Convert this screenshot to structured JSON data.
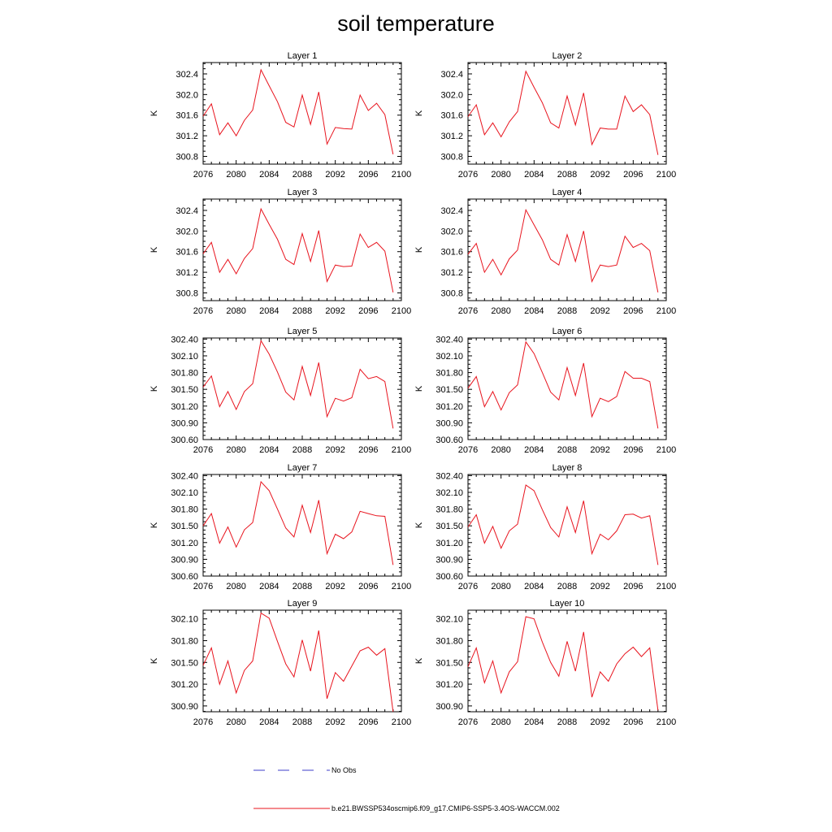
{
  "figure": {
    "title": "soil temperature",
    "legend": [
      {
        "label": "No Obs",
        "color": "#3c3cc8",
        "style": "dashed"
      },
      {
        "label": "b.e21.BWSSP534oscmip6.f09_g17.CMIP6-SSP5-3.4OS-WACCM.002",
        "color": "#e8141e",
        "style": "solid"
      }
    ]
  },
  "chart_data": [
    {
      "type": "line",
      "title": "Layer 1",
      "ylabel": "K",
      "xlim": [
        2076,
        2100
      ],
      "ylim": [
        300.65,
        302.62
      ],
      "xticks": [
        "2076",
        "2080",
        "2084",
        "2088",
        "2092",
        "2096",
        "2100"
      ],
      "yticks": [
        "300.8",
        "301.2",
        "301.6",
        "302.0",
        "302.4"
      ],
      "series": [
        {
          "name": "b.e21.BWSSP534oscmip6.f09_g17.CMIP6-SSP5-3.4OS-WACCM.002",
          "color": "#e8141e",
          "x": [
            2076,
            2077,
            2078,
            2079,
            2080,
            2081,
            2082,
            2083,
            2084,
            2085,
            2086,
            2087,
            2088,
            2089,
            2090,
            2091,
            2092,
            2093,
            2094,
            2095,
            2096,
            2097,
            2098,
            2099
          ],
          "y": [
            301.58,
            301.82,
            301.22,
            301.45,
            301.2,
            301.5,
            301.7,
            302.48,
            302.17,
            301.86,
            301.46,
            301.37,
            301.99,
            301.42,
            302.05,
            301.04,
            301.36,
            301.34,
            301.33,
            301.99,
            301.69,
            301.83,
            301.61,
            300.84
          ]
        }
      ]
    },
    {
      "type": "line",
      "title": "Layer 2",
      "ylabel": "K",
      "xlim": [
        2076,
        2100
      ],
      "ylim": [
        300.65,
        302.62
      ],
      "xticks": [
        "2076",
        "2080",
        "2084",
        "2088",
        "2092",
        "2096",
        "2100"
      ],
      "yticks": [
        "300.8",
        "301.2",
        "301.6",
        "302.0",
        "302.4"
      ],
      "series": [
        {
          "name": "b.e21.BWSSP534oscmip6.f09_g17.CMIP6-SSP5-3.4OS-WACCM.002",
          "color": "#e8141e",
          "x": [
            2076,
            2077,
            2078,
            2079,
            2080,
            2081,
            2082,
            2083,
            2084,
            2085,
            2086,
            2087,
            2088,
            2089,
            2090,
            2091,
            2092,
            2093,
            2094,
            2095,
            2096,
            2097,
            2098,
            2099
          ],
          "y": [
            301.57,
            301.8,
            301.22,
            301.45,
            301.18,
            301.47,
            301.67,
            302.45,
            302.14,
            301.84,
            301.45,
            301.35,
            301.97,
            301.41,
            302.03,
            301.03,
            301.35,
            301.33,
            301.33,
            301.97,
            301.67,
            301.8,
            301.61,
            300.83
          ]
        }
      ]
    },
    {
      "type": "line",
      "title": "Layer 3",
      "ylabel": "K",
      "xlim": [
        2076,
        2100
      ],
      "ylim": [
        300.65,
        302.62
      ],
      "xticks": [
        "2076",
        "2080",
        "2084",
        "2088",
        "2092",
        "2096",
        "2100"
      ],
      "yticks": [
        "300.8",
        "301.2",
        "301.6",
        "302.0",
        "302.4"
      ],
      "series": [
        {
          "name": "b.e21.BWSSP534oscmip6.f09_g17.CMIP6-SSP5-3.4OS-WACCM.002",
          "color": "#e8141e",
          "x": [
            2076,
            2077,
            2078,
            2079,
            2080,
            2081,
            2082,
            2083,
            2084,
            2085,
            2086,
            2087,
            2088,
            2089,
            2090,
            2091,
            2092,
            2093,
            2094,
            2095,
            2096,
            2097,
            2098,
            2099
          ],
          "y": [
            301.56,
            301.78,
            301.2,
            301.45,
            301.17,
            301.47,
            301.66,
            302.43,
            302.13,
            301.84,
            301.45,
            301.35,
            301.95,
            301.41,
            302.01,
            301.02,
            301.34,
            301.31,
            301.32,
            301.94,
            301.68,
            301.78,
            301.61,
            300.81
          ]
        }
      ]
    },
    {
      "type": "line",
      "title": "Layer 4",
      "ylabel": "K",
      "xlim": [
        2076,
        2100
      ],
      "ylim": [
        300.65,
        302.62
      ],
      "xticks": [
        "2076",
        "2080",
        "2084",
        "2088",
        "2092",
        "2096",
        "2100"
      ],
      "yticks": [
        "300.8",
        "301.2",
        "301.6",
        "302.0",
        "302.4"
      ],
      "series": [
        {
          "name": "b.e21.BWSSP534oscmip6.f09_g17.CMIP6-SSP5-3.4OS-WACCM.002",
          "color": "#e8141e",
          "x": [
            2076,
            2077,
            2078,
            2079,
            2080,
            2081,
            2082,
            2083,
            2084,
            2085,
            2086,
            2087,
            2088,
            2089,
            2090,
            2091,
            2092,
            2093,
            2094,
            2095,
            2096,
            2097,
            2098,
            2099
          ],
          "y": [
            301.55,
            301.76,
            301.2,
            301.45,
            301.15,
            301.46,
            301.63,
            302.41,
            302.12,
            301.83,
            301.45,
            301.34,
            301.93,
            301.41,
            302.0,
            301.02,
            301.34,
            301.31,
            301.34,
            301.9,
            301.68,
            301.76,
            301.62,
            300.81
          ]
        }
      ]
    },
    {
      "type": "line",
      "title": "Layer 5",
      "ylabel": "K",
      "xlim": [
        2076,
        2100
      ],
      "ylim": [
        300.6,
        302.42
      ],
      "xticks": [
        "2076",
        "2080",
        "2084",
        "2088",
        "2092",
        "2096",
        "2100"
      ],
      "yticks": [
        "300.60",
        "300.90",
        "301.20",
        "301.50",
        "301.80",
        "302.10",
        "302.40"
      ],
      "series": [
        {
          "name": "b.e21.BWSSP534oscmip6.f09_g17.CMIP6-SSP5-3.4OS-WACCM.002",
          "color": "#e8141e",
          "x": [
            2076,
            2077,
            2078,
            2079,
            2080,
            2081,
            2082,
            2083,
            2084,
            2085,
            2086,
            2087,
            2088,
            2089,
            2090,
            2091,
            2092,
            2093,
            2094,
            2095,
            2096,
            2097,
            2098,
            2099
          ],
          "y": [
            301.54,
            301.74,
            301.19,
            301.46,
            301.14,
            301.46,
            301.6,
            302.37,
            302.13,
            301.81,
            301.45,
            301.31,
            301.91,
            301.39,
            301.98,
            301.01,
            301.34,
            301.29,
            301.35,
            301.86,
            301.69,
            301.73,
            301.64,
            300.8
          ]
        }
      ]
    },
    {
      "type": "line",
      "title": "Layer 6",
      "ylabel": "K",
      "xlim": [
        2076,
        2100
      ],
      "ylim": [
        300.6,
        302.42
      ],
      "xticks": [
        "2076",
        "2080",
        "2084",
        "2088",
        "2092",
        "2096",
        "2100"
      ],
      "yticks": [
        "300.60",
        "300.90",
        "301.20",
        "301.50",
        "301.80",
        "302.10",
        "302.40"
      ],
      "series": [
        {
          "name": "b.e21.BWSSP534oscmip6.f09_g17.CMIP6-SSP5-3.4OS-WACCM.002",
          "color": "#e8141e",
          "x": [
            2076,
            2077,
            2078,
            2079,
            2080,
            2081,
            2082,
            2083,
            2084,
            2085,
            2086,
            2087,
            2088,
            2089,
            2090,
            2091,
            2092,
            2093,
            2094,
            2095,
            2096,
            2097,
            2098,
            2099
          ],
          "y": [
            301.52,
            301.73,
            301.19,
            301.46,
            301.13,
            301.44,
            301.58,
            302.35,
            302.14,
            301.8,
            301.45,
            301.31,
            301.89,
            301.39,
            301.97,
            301.01,
            301.34,
            301.28,
            301.37,
            301.82,
            301.7,
            301.7,
            301.64,
            300.8
          ]
        }
      ]
    },
    {
      "type": "line",
      "title": "Layer 7",
      "ylabel": "K",
      "xlim": [
        2076,
        2100
      ],
      "ylim": [
        300.6,
        302.42
      ],
      "xticks": [
        "2076",
        "2080",
        "2084",
        "2088",
        "2092",
        "2096",
        "2100"
      ],
      "yticks": [
        "300.60",
        "300.90",
        "301.20",
        "301.50",
        "301.80",
        "302.10",
        "302.40"
      ],
      "series": [
        {
          "name": "b.e21.BWSSP534oscmip6.f09_g17.CMIP6-SSP5-3.4OS-WACCM.002",
          "color": "#e8141e",
          "x": [
            2076,
            2077,
            2078,
            2079,
            2080,
            2081,
            2082,
            2083,
            2084,
            2085,
            2086,
            2087,
            2088,
            2089,
            2090,
            2091,
            2092,
            2093,
            2094,
            2095,
            2096,
            2097,
            2098,
            2099
          ],
          "y": [
            301.5,
            301.72,
            301.19,
            301.48,
            301.12,
            301.43,
            301.56,
            302.29,
            302.13,
            301.8,
            301.46,
            301.3,
            301.87,
            301.38,
            301.96,
            301.0,
            301.35,
            301.27,
            301.39,
            301.76,
            301.72,
            301.68,
            301.67,
            300.8
          ]
        }
      ]
    },
    {
      "type": "line",
      "title": "Layer 8",
      "ylabel": "K",
      "xlim": [
        2076,
        2100
      ],
      "ylim": [
        300.6,
        302.42
      ],
      "xticks": [
        "2076",
        "2080",
        "2084",
        "2088",
        "2092",
        "2096",
        "2100"
      ],
      "yticks": [
        "300.60",
        "300.90",
        "301.20",
        "301.50",
        "301.80",
        "302.10",
        "302.40"
      ],
      "series": [
        {
          "name": "b.e21.BWSSP534oscmip6.f09_g17.CMIP6-SSP5-3.4OS-WACCM.002",
          "color": "#e8141e",
          "x": [
            2076,
            2077,
            2078,
            2079,
            2080,
            2081,
            2082,
            2083,
            2084,
            2085,
            2086,
            2087,
            2088,
            2089,
            2090,
            2091,
            2092,
            2093,
            2094,
            2095,
            2096,
            2097,
            2098,
            2099
          ],
          "y": [
            301.48,
            301.7,
            301.19,
            301.49,
            301.1,
            301.41,
            301.53,
            302.23,
            302.13,
            301.79,
            301.47,
            301.3,
            301.84,
            301.38,
            301.95,
            301.0,
            301.35,
            301.25,
            301.41,
            301.7,
            301.71,
            301.64,
            301.68,
            300.8
          ]
        }
      ]
    },
    {
      "type": "line",
      "title": "Layer 9",
      "ylabel": "K",
      "xlim": [
        2076,
        2100
      ],
      "ylim": [
        300.82,
        302.22
      ],
      "xticks": [
        "2076",
        "2080",
        "2084",
        "2088",
        "2092",
        "2096",
        "2100"
      ],
      "yticks": [
        "300.90",
        "301.20",
        "301.50",
        "301.80",
        "302.10"
      ],
      "series": [
        {
          "name": "b.e21.BWSSP534oscmip6.f09_g17.CMIP6-SSP5-3.4OS-WACCM.002",
          "color": "#e8141e",
          "x": [
            2076,
            2077,
            2078,
            2079,
            2080,
            2081,
            2082,
            2083,
            2084,
            2085,
            2086,
            2087,
            2088,
            2089,
            2090,
            2091,
            2092,
            2093,
            2094,
            2095,
            2096,
            2097,
            2098,
            2099
          ],
          "y": [
            301.46,
            301.7,
            301.2,
            301.52,
            301.08,
            301.39,
            301.52,
            302.18,
            302.11,
            301.79,
            301.48,
            301.3,
            301.81,
            301.38,
            301.94,
            301.0,
            301.36,
            301.24,
            301.45,
            301.66,
            301.71,
            301.6,
            301.69,
            300.82
          ]
        }
      ]
    },
    {
      "type": "line",
      "title": "Layer 10",
      "ylabel": "K",
      "xlim": [
        2076,
        2100
      ],
      "ylim": [
        300.82,
        302.22
      ],
      "xticks": [
        "2076",
        "2080",
        "2084",
        "2088",
        "2092",
        "2096",
        "2100"
      ],
      "yticks": [
        "300.90",
        "301.20",
        "301.50",
        "301.80",
        "302.10"
      ],
      "series": [
        {
          "name": "b.e21.BWSSP534oscmip6.f09_g17.CMIP6-SSP5-3.4OS-WACCM.002",
          "color": "#e8141e",
          "x": [
            2076,
            2077,
            2078,
            2079,
            2080,
            2081,
            2082,
            2083,
            2084,
            2085,
            2086,
            2087,
            2088,
            2089,
            2090,
            2091,
            2092,
            2093,
            2094,
            2095,
            2096,
            2097,
            2098,
            2099
          ],
          "y": [
            301.44,
            301.7,
            301.22,
            301.52,
            301.08,
            301.37,
            301.51,
            302.13,
            302.1,
            301.78,
            301.5,
            301.31,
            301.79,
            301.38,
            301.92,
            301.02,
            301.37,
            301.24,
            301.48,
            301.62,
            301.71,
            301.58,
            301.7,
            300.84
          ]
        }
      ]
    }
  ]
}
